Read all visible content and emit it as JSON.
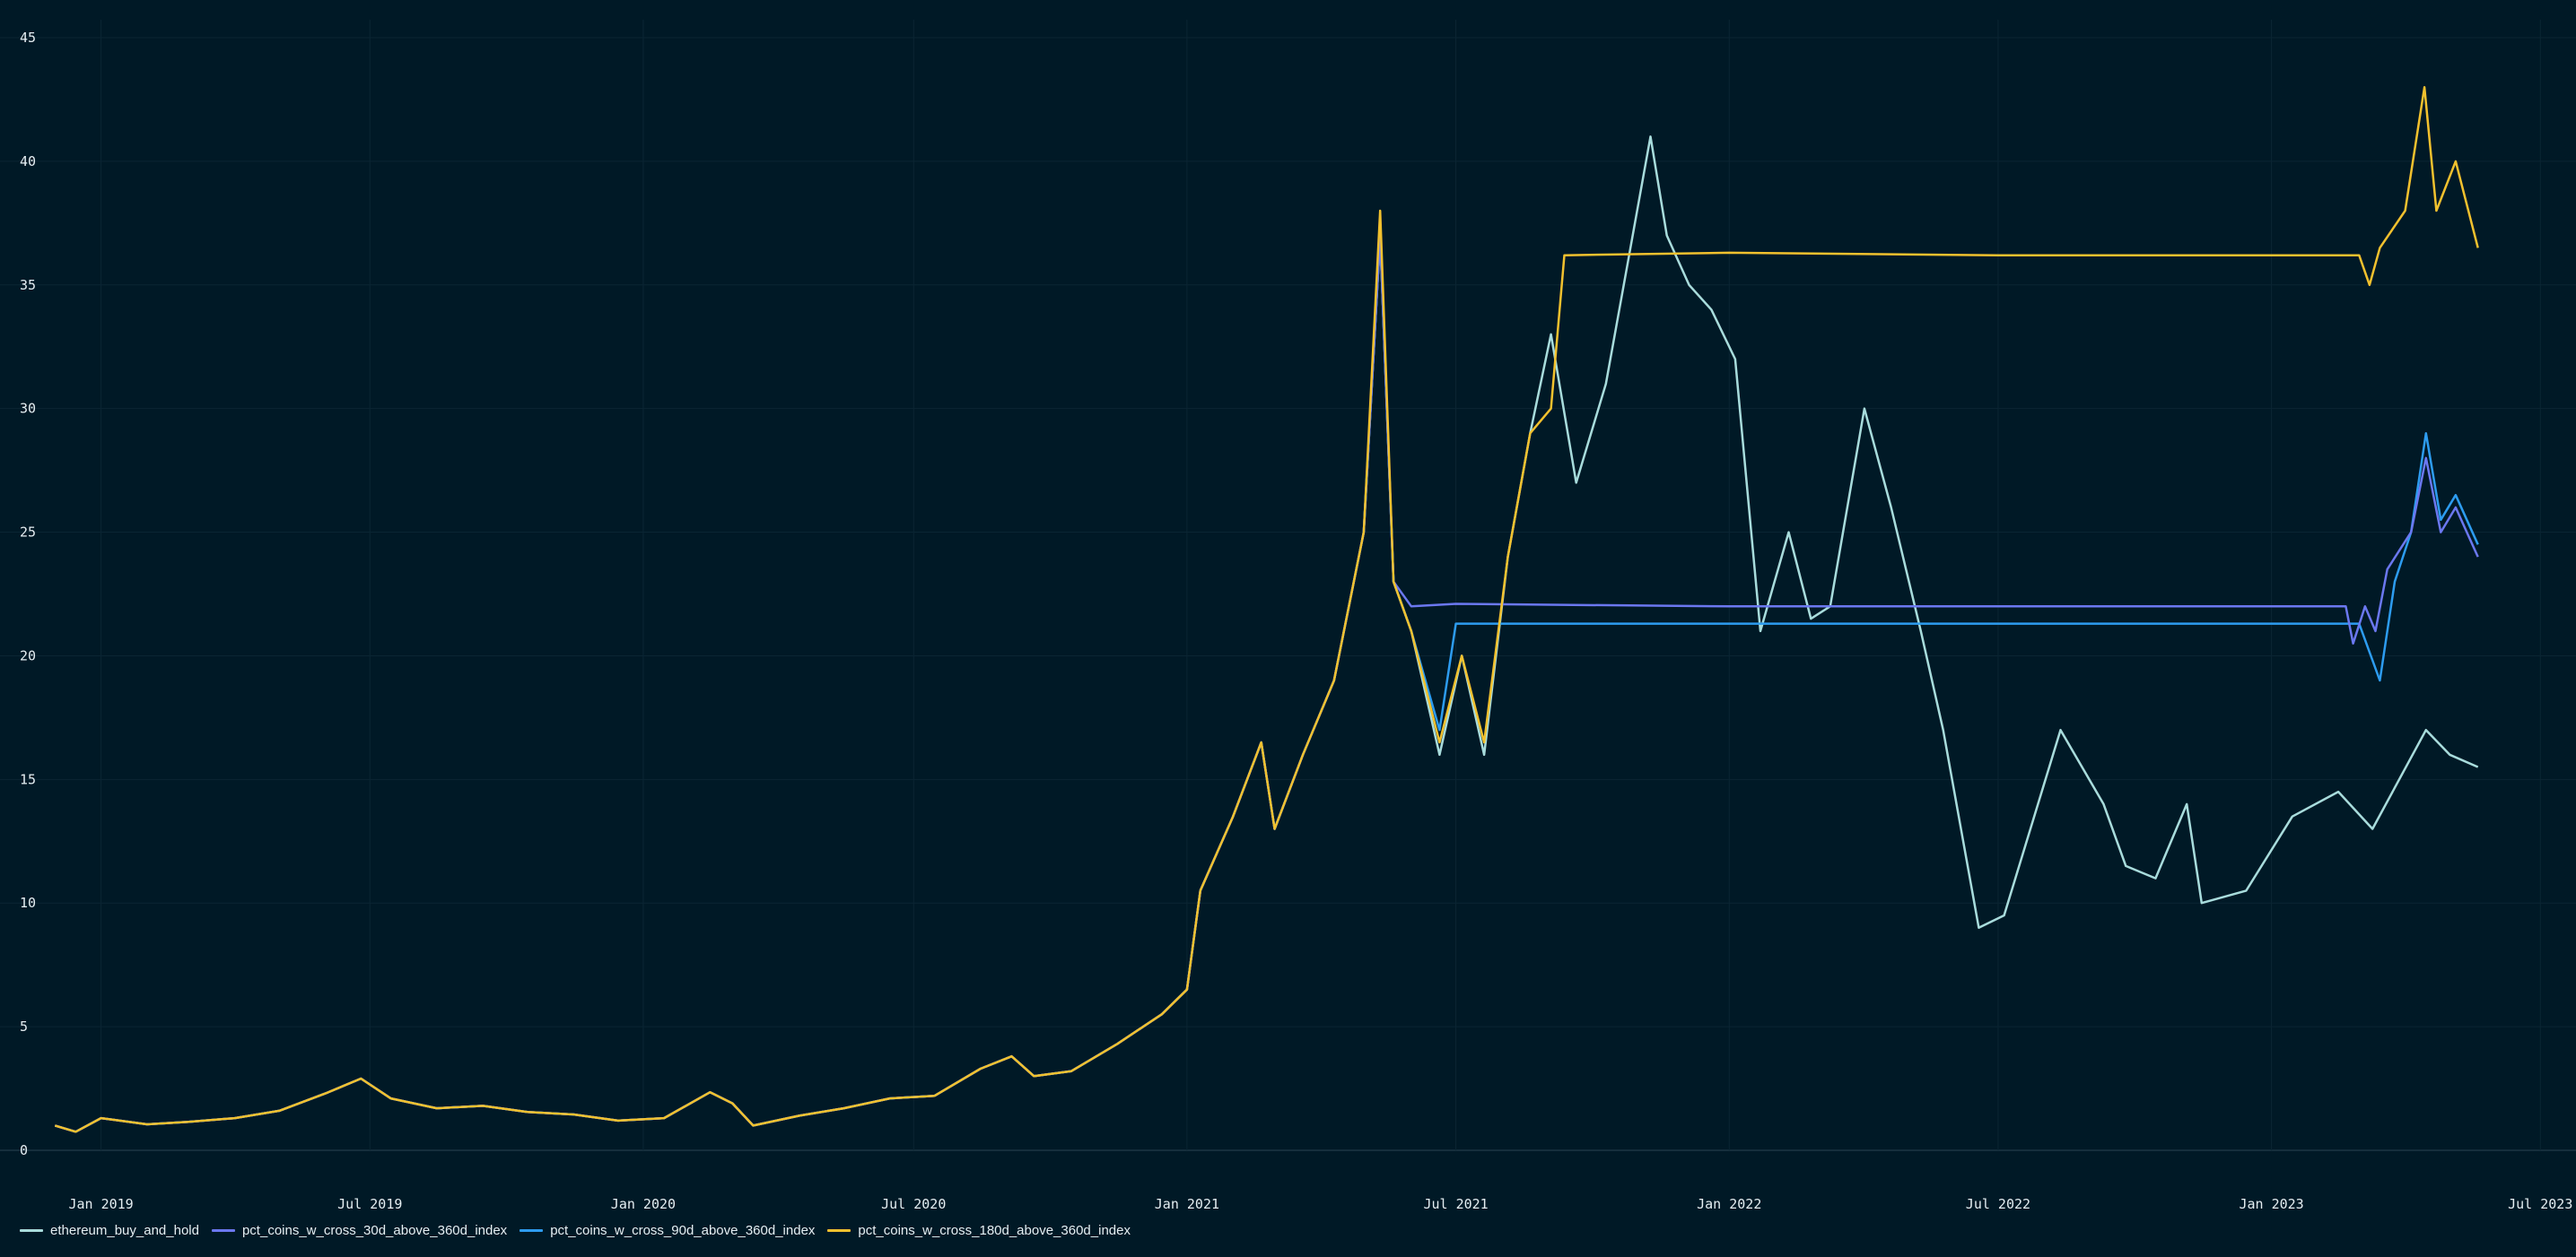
{
  "chart_data": {
    "type": "line",
    "title": "",
    "xlabel": "",
    "ylabel": "",
    "x_range": [
      "2018-10-25",
      "2023-07-25"
    ],
    "ylim": [
      0,
      45
    ],
    "grid": true,
    "legend_position": "bottom-left",
    "x_ticks": [
      "Jan 2019",
      "Jul 2019",
      "Jan 2020",
      "Jul 2020",
      "Jan 2021",
      "Jul 2021",
      "Jan 2022",
      "Jul 2022",
      "Jan 2023",
      "Jul 2023"
    ],
    "x_tick_dates": [
      "2019-01-01",
      "2019-07-01",
      "2020-01-01",
      "2020-07-01",
      "2021-01-01",
      "2021-07-01",
      "2022-01-01",
      "2022-07-01",
      "2023-01-01",
      "2023-07-01"
    ],
    "y_ticks": [
      "0",
      "5",
      "10",
      "15",
      "20",
      "25",
      "30",
      "35",
      "40",
      "45"
    ],
    "series": [
      {
        "name": "ethereum_buy_and_hold",
        "color": "#a8dcdc",
        "points": [
          [
            "2018-12-01",
            1.0
          ],
          [
            "2018-12-15",
            0.75
          ],
          [
            "2019-01-01",
            1.3
          ],
          [
            "2019-02-01",
            1.05
          ],
          [
            "2019-03-01",
            1.15
          ],
          [
            "2019-04-01",
            1.3
          ],
          [
            "2019-05-01",
            1.6
          ],
          [
            "2019-06-01",
            2.3
          ],
          [
            "2019-06-25",
            2.9
          ],
          [
            "2019-07-15",
            2.1
          ],
          [
            "2019-08-15",
            1.7
          ],
          [
            "2019-09-15",
            1.8
          ],
          [
            "2019-10-15",
            1.55
          ],
          [
            "2019-11-15",
            1.45
          ],
          [
            "2019-12-15",
            1.2
          ],
          [
            "2020-01-15",
            1.3
          ],
          [
            "2020-02-15",
            2.35
          ],
          [
            "2020-03-01",
            1.9
          ],
          [
            "2020-03-15",
            1.0
          ],
          [
            "2020-04-15",
            1.4
          ],
          [
            "2020-05-15",
            1.7
          ],
          [
            "2020-06-15",
            2.1
          ],
          [
            "2020-07-15",
            2.2
          ],
          [
            "2020-08-15",
            3.3
          ],
          [
            "2020-09-05",
            3.8
          ],
          [
            "2020-09-20",
            3.0
          ],
          [
            "2020-10-15",
            3.2
          ],
          [
            "2020-11-15",
            4.3
          ],
          [
            "2020-12-15",
            5.5
          ],
          [
            "2021-01-01",
            6.5
          ],
          [
            "2021-01-10",
            10.5
          ],
          [
            "2021-02-01",
            13.5
          ],
          [
            "2021-02-20",
            16.5
          ],
          [
            "2021-03-01",
            13.0
          ],
          [
            "2021-03-20",
            16.0
          ],
          [
            "2021-04-10",
            19.0
          ],
          [
            "2021-04-30",
            25.0
          ],
          [
            "2021-05-11",
            37.0
          ],
          [
            "2021-05-20",
            23.0
          ],
          [
            "2021-06-01",
            21.0
          ],
          [
            "2021-06-20",
            16.0
          ],
          [
            "2021-07-05",
            20.0
          ],
          [
            "2021-07-20",
            16.0
          ],
          [
            "2021-08-05",
            24.0
          ],
          [
            "2021-08-20",
            29.0
          ],
          [
            "2021-09-03",
            33.0
          ],
          [
            "2021-09-20",
            27.0
          ],
          [
            "2021-10-10",
            31.0
          ],
          [
            "2021-10-25",
            36.0
          ],
          [
            "2021-11-09",
            41.0
          ],
          [
            "2021-11-20",
            37.0
          ],
          [
            "2021-12-05",
            35.0
          ],
          [
            "2021-12-20",
            34.0
          ],
          [
            "2022-01-05",
            32.0
          ],
          [
            "2022-01-22",
            21.0
          ],
          [
            "2022-02-10",
            25.0
          ],
          [
            "2022-02-25",
            21.5
          ],
          [
            "2022-03-10",
            22.0
          ],
          [
            "2022-04-02",
            30.0
          ],
          [
            "2022-04-20",
            26.0
          ],
          [
            "2022-05-10",
            21.0
          ],
          [
            "2022-05-25",
            17.0
          ],
          [
            "2022-06-18",
            9.0
          ],
          [
            "2022-07-05",
            9.5
          ],
          [
            "2022-08-12",
            17.0
          ],
          [
            "2022-09-10",
            14.0
          ],
          [
            "2022-09-25",
            11.5
          ],
          [
            "2022-10-15",
            11.0
          ],
          [
            "2022-11-05",
            14.0
          ],
          [
            "2022-11-15",
            10.0
          ],
          [
            "2022-12-15",
            10.5
          ],
          [
            "2023-01-15",
            13.5
          ],
          [
            "2023-02-15",
            14.5
          ],
          [
            "2023-03-10",
            13.0
          ],
          [
            "2023-04-15",
            17.0
          ],
          [
            "2023-05-01",
            16.0
          ],
          [
            "2023-05-20",
            15.5
          ]
        ]
      },
      {
        "name": "pct_coins_w_cross_30d_above_360d_index",
        "color": "#6b78f0",
        "points": [
          [
            "2018-12-01",
            1.0
          ],
          [
            "2018-12-15",
            0.75
          ],
          [
            "2019-01-01",
            1.3
          ],
          [
            "2019-02-01",
            1.05
          ],
          [
            "2019-03-01",
            1.15
          ],
          [
            "2019-04-01",
            1.3
          ],
          [
            "2019-05-01",
            1.6
          ],
          [
            "2019-06-01",
            2.3
          ],
          [
            "2019-06-25",
            2.9
          ],
          [
            "2019-07-15",
            2.1
          ],
          [
            "2019-08-15",
            1.7
          ],
          [
            "2019-09-15",
            1.8
          ],
          [
            "2019-10-15",
            1.55
          ],
          [
            "2019-11-15",
            1.45
          ],
          [
            "2019-12-15",
            1.2
          ],
          [
            "2020-01-15",
            1.3
          ],
          [
            "2020-02-15",
            2.35
          ],
          [
            "2020-03-01",
            1.9
          ],
          [
            "2020-03-15",
            1.0
          ],
          [
            "2020-04-15",
            1.4
          ],
          [
            "2020-05-15",
            1.7
          ],
          [
            "2020-06-15",
            2.1
          ],
          [
            "2020-07-15",
            2.2
          ],
          [
            "2020-08-15",
            3.3
          ],
          [
            "2020-09-05",
            3.8
          ],
          [
            "2020-09-20",
            3.0
          ],
          [
            "2020-10-15",
            3.2
          ],
          [
            "2020-11-15",
            4.3
          ],
          [
            "2020-12-15",
            5.5
          ],
          [
            "2021-01-01",
            6.5
          ],
          [
            "2021-01-10",
            10.5
          ],
          [
            "2021-02-01",
            13.5
          ],
          [
            "2021-02-20",
            16.5
          ],
          [
            "2021-03-01",
            13.0
          ],
          [
            "2021-03-20",
            16.0
          ],
          [
            "2021-04-10",
            19.0
          ],
          [
            "2021-04-30",
            25.0
          ],
          [
            "2021-05-11",
            37.0
          ],
          [
            "2021-05-20",
            23.0
          ],
          [
            "2021-06-01",
            22.0
          ],
          [
            "2021-07-01",
            22.1
          ],
          [
            "2022-01-01",
            22.0
          ],
          [
            "2022-07-01",
            22.0
          ],
          [
            "2023-01-01",
            22.0
          ],
          [
            "2023-02-20",
            22.0
          ],
          [
            "2023-02-25",
            20.5
          ],
          [
            "2023-03-05",
            22.0
          ],
          [
            "2023-03-12",
            21.0
          ],
          [
            "2023-03-20",
            23.5
          ],
          [
            "2023-04-05",
            25.0
          ],
          [
            "2023-04-15",
            28.0
          ],
          [
            "2023-04-25",
            25.0
          ],
          [
            "2023-05-05",
            26.0
          ],
          [
            "2023-05-20",
            24.0
          ]
        ]
      },
      {
        "name": "pct_coins_w_cross_90d_above_360d_index",
        "color": "#2d9cf0",
        "points": [
          [
            "2018-12-01",
            1.0
          ],
          [
            "2018-12-15",
            0.75
          ],
          [
            "2019-01-01",
            1.3
          ],
          [
            "2019-02-01",
            1.05
          ],
          [
            "2019-03-01",
            1.15
          ],
          [
            "2019-04-01",
            1.3
          ],
          [
            "2019-05-01",
            1.6
          ],
          [
            "2019-06-01",
            2.3
          ],
          [
            "2019-06-25",
            2.9
          ],
          [
            "2019-07-15",
            2.1
          ],
          [
            "2019-08-15",
            1.7
          ],
          [
            "2019-09-15",
            1.8
          ],
          [
            "2019-10-15",
            1.55
          ],
          [
            "2019-11-15",
            1.45
          ],
          [
            "2019-12-15",
            1.2
          ],
          [
            "2020-01-15",
            1.3
          ],
          [
            "2020-02-15",
            2.35
          ],
          [
            "2020-03-01",
            1.9
          ],
          [
            "2020-03-15",
            1.0
          ],
          [
            "2020-04-15",
            1.4
          ],
          [
            "2020-05-15",
            1.7
          ],
          [
            "2020-06-15",
            2.1
          ],
          [
            "2020-07-15",
            2.2
          ],
          [
            "2020-08-15",
            3.3
          ],
          [
            "2020-09-05",
            3.8
          ],
          [
            "2020-09-20",
            3.0
          ],
          [
            "2020-10-15",
            3.2
          ],
          [
            "2020-11-15",
            4.3
          ],
          [
            "2020-12-15",
            5.5
          ],
          [
            "2021-01-01",
            6.5
          ],
          [
            "2021-01-10",
            10.5
          ],
          [
            "2021-02-01",
            13.5
          ],
          [
            "2021-02-20",
            16.5
          ],
          [
            "2021-03-01",
            13.0
          ],
          [
            "2021-03-20",
            16.0
          ],
          [
            "2021-04-10",
            19.0
          ],
          [
            "2021-04-30",
            25.0
          ],
          [
            "2021-05-11",
            37.0
          ],
          [
            "2021-05-20",
            23.0
          ],
          [
            "2021-06-01",
            21.0
          ],
          [
            "2021-06-20",
            17.0
          ],
          [
            "2021-07-01",
            21.3
          ],
          [
            "2022-01-01",
            21.3
          ],
          [
            "2022-07-01",
            21.3
          ],
          [
            "2023-01-01",
            21.3
          ],
          [
            "2023-03-01",
            21.3
          ],
          [
            "2023-03-15",
            19.0
          ],
          [
            "2023-03-25",
            23.0
          ],
          [
            "2023-04-05",
            25.0
          ],
          [
            "2023-04-15",
            29.0
          ],
          [
            "2023-04-25",
            25.5
          ],
          [
            "2023-05-05",
            26.5
          ],
          [
            "2023-05-20",
            24.5
          ]
        ]
      },
      {
        "name": "pct_coins_w_cross_180d_above_360d_index",
        "color": "#f2c12e",
        "points": [
          [
            "2018-12-01",
            1.0
          ],
          [
            "2018-12-15",
            0.75
          ],
          [
            "2019-01-01",
            1.3
          ],
          [
            "2019-02-01",
            1.05
          ],
          [
            "2019-03-01",
            1.15
          ],
          [
            "2019-04-01",
            1.3
          ],
          [
            "2019-05-01",
            1.6
          ],
          [
            "2019-06-01",
            2.3
          ],
          [
            "2019-06-25",
            2.9
          ],
          [
            "2019-07-15",
            2.1
          ],
          [
            "2019-08-15",
            1.7
          ],
          [
            "2019-09-15",
            1.8
          ],
          [
            "2019-10-15",
            1.55
          ],
          [
            "2019-11-15",
            1.45
          ],
          [
            "2019-12-15",
            1.2
          ],
          [
            "2020-01-15",
            1.3
          ],
          [
            "2020-02-15",
            2.35
          ],
          [
            "2020-03-01",
            1.9
          ],
          [
            "2020-03-15",
            1.0
          ],
          [
            "2020-04-15",
            1.4
          ],
          [
            "2020-05-15",
            1.7
          ],
          [
            "2020-06-15",
            2.1
          ],
          [
            "2020-07-15",
            2.2
          ],
          [
            "2020-08-15",
            3.3
          ],
          [
            "2020-09-05",
            3.8
          ],
          [
            "2020-09-20",
            3.0
          ],
          [
            "2020-10-15",
            3.2
          ],
          [
            "2020-11-15",
            4.3
          ],
          [
            "2020-12-15",
            5.5
          ],
          [
            "2021-01-01",
            6.5
          ],
          [
            "2021-01-10",
            10.5
          ],
          [
            "2021-02-01",
            13.5
          ],
          [
            "2021-02-20",
            16.5
          ],
          [
            "2021-03-01",
            13.0
          ],
          [
            "2021-03-20",
            16.0
          ],
          [
            "2021-04-10",
            19.0
          ],
          [
            "2021-04-30",
            25.0
          ],
          [
            "2021-05-11",
            38.0
          ],
          [
            "2021-05-20",
            23.0
          ],
          [
            "2021-06-01",
            21.0
          ],
          [
            "2021-06-20",
            16.5
          ],
          [
            "2021-07-05",
            20.0
          ],
          [
            "2021-07-20",
            16.5
          ],
          [
            "2021-08-05",
            24.0
          ],
          [
            "2021-08-20",
            29.0
          ],
          [
            "2021-09-03",
            30.0
          ],
          [
            "2021-09-12",
            36.2
          ],
          [
            "2022-01-01",
            36.3
          ],
          [
            "2022-07-01",
            36.2
          ],
          [
            "2023-01-01",
            36.2
          ],
          [
            "2023-03-01",
            36.2
          ],
          [
            "2023-03-08",
            35.0
          ],
          [
            "2023-03-15",
            36.5
          ],
          [
            "2023-04-01",
            38.0
          ],
          [
            "2023-04-14",
            43.0
          ],
          [
            "2023-04-22",
            38.0
          ],
          [
            "2023-05-05",
            40.0
          ],
          [
            "2023-05-20",
            36.5
          ]
        ]
      }
    ]
  },
  "legend": {
    "items": [
      {
        "label": "ethereum_buy_and_hold",
        "color": "#a8dcdc"
      },
      {
        "label": "pct_coins_w_cross_30d_above_360d_index",
        "color": "#6b78f0"
      },
      {
        "label": "pct_coins_w_cross_90d_above_360d_index",
        "color": "#2d9cf0"
      },
      {
        "label": "pct_coins_w_cross_180d_above_360d_index",
        "color": "#f2c12e"
      }
    ]
  }
}
